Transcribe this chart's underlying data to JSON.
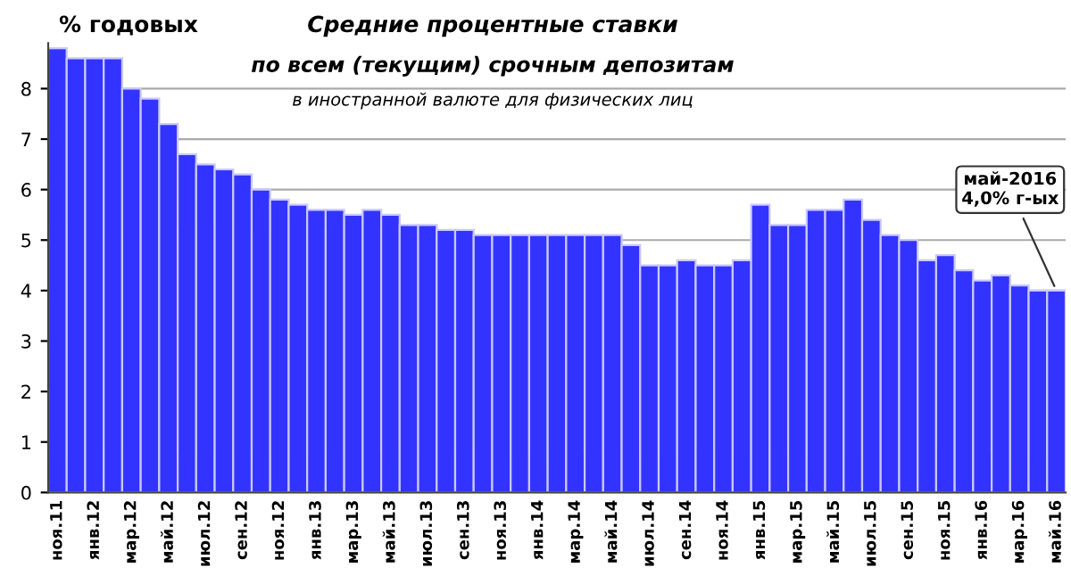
{
  "chart_data": {
    "type": "bar",
    "title": "Средние процентные ставки",
    "subtitle": "по всем (текущим) срочным депозитам\nв иностранной валюте для физических лиц",
    "ylabel": "% годовых",
    "categories": [
      "ноя.11",
      null,
      "янв.12",
      null,
      "мар.12",
      null,
      "май.12",
      null,
      "июл.12",
      null,
      "сен.12",
      null,
      "ноя.12",
      null,
      "янв.13",
      null,
      "мар.13",
      null,
      "май.13",
      null,
      "июл.13",
      null,
      "сен.13",
      null,
      "ноя.13",
      null,
      "янв.14",
      null,
      "мар.14",
      null,
      "май.14",
      null,
      "июл.14",
      null,
      "сен.14",
      null,
      "ноя.14",
      null,
      "янв.15",
      null,
      "мар.15",
      null,
      "май.15",
      null,
      "июл.15",
      null,
      "сен.15",
      null,
      "ноя.15",
      null,
      "янв.16",
      null,
      "мар.16",
      null,
      "май.16"
    ],
    "values": [
      8.8,
      8.6,
      8.6,
      8.6,
      8.0,
      7.8,
      7.3,
      6.7,
      6.5,
      6.4,
      6.3,
      6.0,
      5.8,
      5.7,
      5.6,
      5.6,
      5.5,
      5.6,
      5.5,
      5.3,
      5.3,
      5.2,
      5.2,
      5.1,
      5.1,
      5.1,
      5.1,
      5.1,
      5.1,
      5.1,
      5.1,
      4.9,
      4.5,
      4.5,
      4.6,
      4.5,
      4.5,
      4.6,
      5.7,
      5.3,
      5.3,
      5.6,
      5.6,
      5.8,
      5.4,
      5.1,
      5.0,
      4.6,
      4.7,
      4.4,
      4.2,
      4.3,
      4.1,
      4.0,
      4.0
    ],
    "color": "#3333ff",
    "ylim": [
      0,
      8.9
    ],
    "yticks": [
      0,
      1,
      2,
      3,
      4,
      5,
      6,
      7,
      8
    ],
    "grid": "y",
    "annotations": [
      {
        "text": "май-2016\n4,0% г-ых",
        "x": "май.16",
        "y": 4.0
      }
    ]
  }
}
